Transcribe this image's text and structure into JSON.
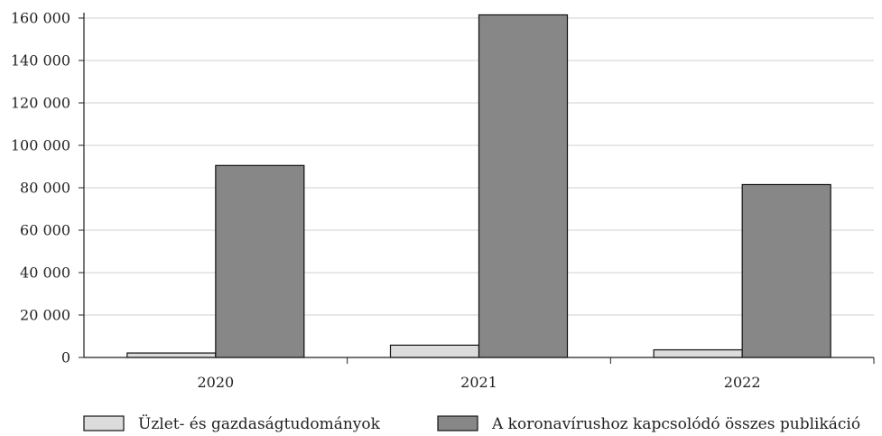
{
  "chart_data": {
    "type": "bar",
    "categories": [
      "2020",
      "2021",
      "2022"
    ],
    "series": [
      {
        "name": "Üzlet- és gazdaságtudományok",
        "values": [
          2100,
          5800,
          3600
        ],
        "color": "#dcdcdc"
      },
      {
        "name": "A koronavírushoz kapcsolódó összes publikáció",
        "values": [
          90500,
          161500,
          81500
        ],
        "color": "#878787"
      }
    ],
    "ylim": [
      0,
      160000
    ],
    "yticks": [
      0,
      20000,
      40000,
      60000,
      80000,
      100000,
      120000,
      140000,
      160000
    ],
    "ytick_labels": [
      "0",
      "20 000",
      "40 000",
      "60 000",
      "80 000",
      "100 000",
      "120 000",
      "140 000",
      "160 000"
    ],
    "title": "",
    "xlabel": "",
    "ylabel": "",
    "grid": "horizontal",
    "legend_position": "bottom"
  }
}
